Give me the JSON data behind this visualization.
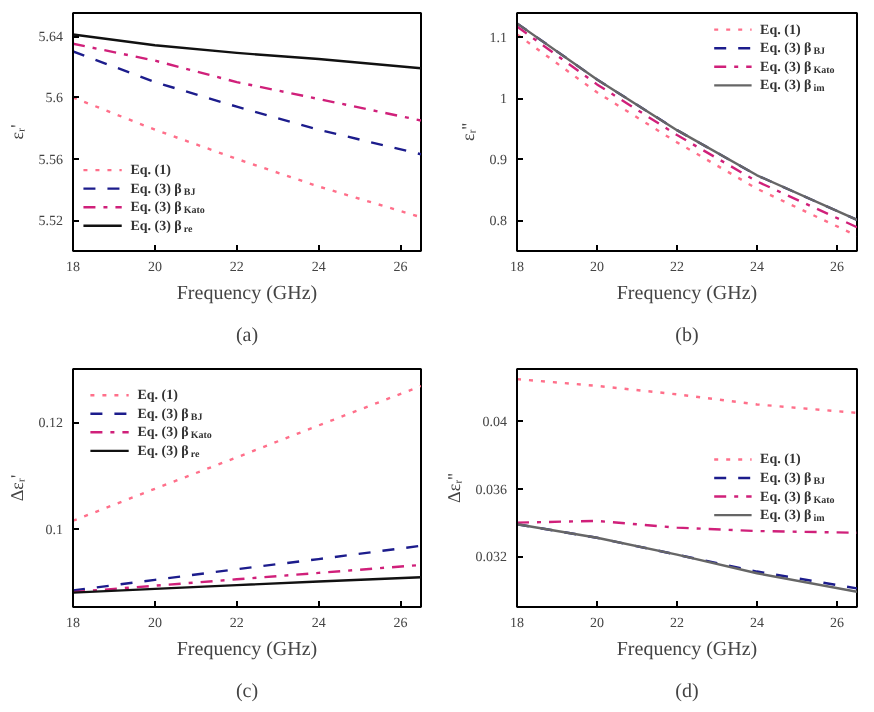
{
  "chart_data": [
    {
      "type": "line",
      "xlabel": "Frequency (GHz)",
      "ylabel": "εᵣ'",
      "annotations": [
        "(a)"
      ],
      "xlim": [
        18,
        26.5
      ],
      "ylim": [
        5.5,
        5.655
      ],
      "xticks": [
        18,
        20,
        22,
        24,
        26
      ],
      "yticks": [
        5.52,
        5.56,
        5.6,
        5.64
      ],
      "grid": false,
      "legend": "bottom left",
      "x": [
        18,
        20,
        22,
        24,
        26.5
      ],
      "series": [
        {
          "name": "Eq. (1)",
          "color": "#ff6f8a",
          "line_style": "dotted",
          "values": [
            5.6,
            5.579,
            5.56,
            5.542,
            5.522
          ]
        },
        {
          "name": "Eq. (3) β$_{BJ}$",
          "color": "#1c1c8c",
          "line_style": "dashed",
          "values": [
            5.63,
            5.61,
            5.594,
            5.579,
            5.563
          ]
        },
        {
          "name": "Eq. (3) β$_{Kato}$",
          "color": "#d0207a",
          "line_style": "dashdot",
          "values": [
            5.635,
            5.624,
            5.61,
            5.599,
            5.585
          ]
        },
        {
          "name": "Eq. (3) β$_{re}$",
          "color": "#111111",
          "line_style": "solid",
          "values": [
            5.641,
            5.634,
            5.629,
            5.625,
            5.619
          ]
        }
      ]
    },
    {
      "type": "line",
      "xlabel": "Frequency (GHz)",
      "ylabel": "εᵣ''",
      "annotations": [
        "(b)"
      ],
      "xlim": [
        18,
        26.5
      ],
      "ylim": [
        0.75,
        1.14
      ],
      "xticks": [
        18,
        20,
        22,
        24,
        26
      ],
      "yticks": [
        0.8,
        0.9,
        1.0,
        1.1
      ],
      "grid": false,
      "legend": "top right",
      "x": [
        18,
        20,
        22,
        24,
        26.5
      ],
      "series": [
        {
          "name": "Eq. (1)",
          "color": "#ff6f8a",
          "line_style": "dotted",
          "values": [
            1.105,
            1.01,
            0.928,
            0.852,
            0.775
          ]
        },
        {
          "name": "Eq. (3) β$_{BJ}$",
          "color": "#1c1c8c",
          "line_style": "dashed",
          "values": [
            1.123,
            1.031,
            0.948,
            0.874,
            0.801
          ]
        },
        {
          "name": "Eq. (3) β$_{Kato}$",
          "color": "#d0207a",
          "line_style": "dashdot",
          "values": [
            1.118,
            1.023,
            0.94,
            0.864,
            0.789
          ]
        },
        {
          "name": "Eq. (3) β$_{im}$",
          "color": "#666666",
          "line_style": "solid",
          "values": [
            1.123,
            1.031,
            0.948,
            0.874,
            0.801
          ]
        }
      ]
    },
    {
      "type": "line",
      "xlabel": "Frequency (GHz)",
      "ylabel": "Δεᵣ'",
      "annotations": [
        "(c)"
      ],
      "xlim": [
        18,
        26.5
      ],
      "ylim": [
        0.0853,
        0.13
      ],
      "xticks": [
        18,
        20,
        22,
        24,
        26
      ],
      "yticks": [
        0.1,
        0.12
      ],
      "grid": false,
      "legend": "top left",
      "x": [
        18,
        20,
        22,
        24,
        26.5
      ],
      "series": [
        {
          "name": "Eq. (1)",
          "color": "#ff6f8a",
          "line_style": "dotted",
          "values": [
            0.1015,
            0.1075,
            0.1134,
            0.1194,
            0.1268
          ]
        },
        {
          "name": "Eq. (3) β$_{BJ}$",
          "color": "#1c1c8c",
          "line_style": "dashed",
          "values": [
            0.0884,
            0.0904,
            0.0924,
            0.0943,
            0.0968
          ]
        },
        {
          "name": "Eq. (3) β$_{Kato}$",
          "color": "#d0207a",
          "line_style": "dashdot",
          "values": [
            0.0881,
            0.0893,
            0.0905,
            0.0917,
            0.0932
          ]
        },
        {
          "name": "Eq. (3) β$_{re}$",
          "color": "#111111",
          "line_style": "solid",
          "values": [
            0.088,
            0.0887,
            0.0894,
            0.0901,
            0.0909
          ]
        }
      ]
    },
    {
      "type": "line",
      "xlabel": "Frequency (GHz)",
      "ylabel": "Δεᵣ''",
      "annotations": [
        "(d)"
      ],
      "xlim": [
        18,
        26.5
      ],
      "ylim": [
        0.029,
        0.0431
      ],
      "xticks": [
        18,
        20,
        22,
        24,
        26
      ],
      "yticks": [
        0.032,
        0.036,
        0.04
      ],
      "grid": false,
      "legend": "right",
      "x": [
        18,
        20,
        22,
        24,
        26.5
      ],
      "series": [
        {
          "name": "Eq. (1)",
          "color": "#ff6f8a",
          "line_style": "dotted",
          "values": [
            0.0425,
            0.0421,
            0.0416,
            0.041,
            0.0405
          ]
        },
        {
          "name": "Eq. (3) β$_{BJ}$",
          "color": "#1c1c8c",
          "line_style": "dashed",
          "values": [
            0.0339,
            0.0331,
            0.0321,
            0.0311,
            0.0301
          ]
        },
        {
          "name": "Eq. (3) β$_{Kato}$",
          "color": "#d0207a",
          "line_style": "dashdot",
          "values": [
            0.034,
            0.0341,
            0.0337,
            0.0335,
            0.0334
          ]
        },
        {
          "name": "Eq. (3) β$_{im}$",
          "color": "#666666",
          "line_style": "solid",
          "values": [
            0.0339,
            0.0331,
            0.0321,
            0.031,
            0.0299
          ]
        }
      ]
    }
  ]
}
